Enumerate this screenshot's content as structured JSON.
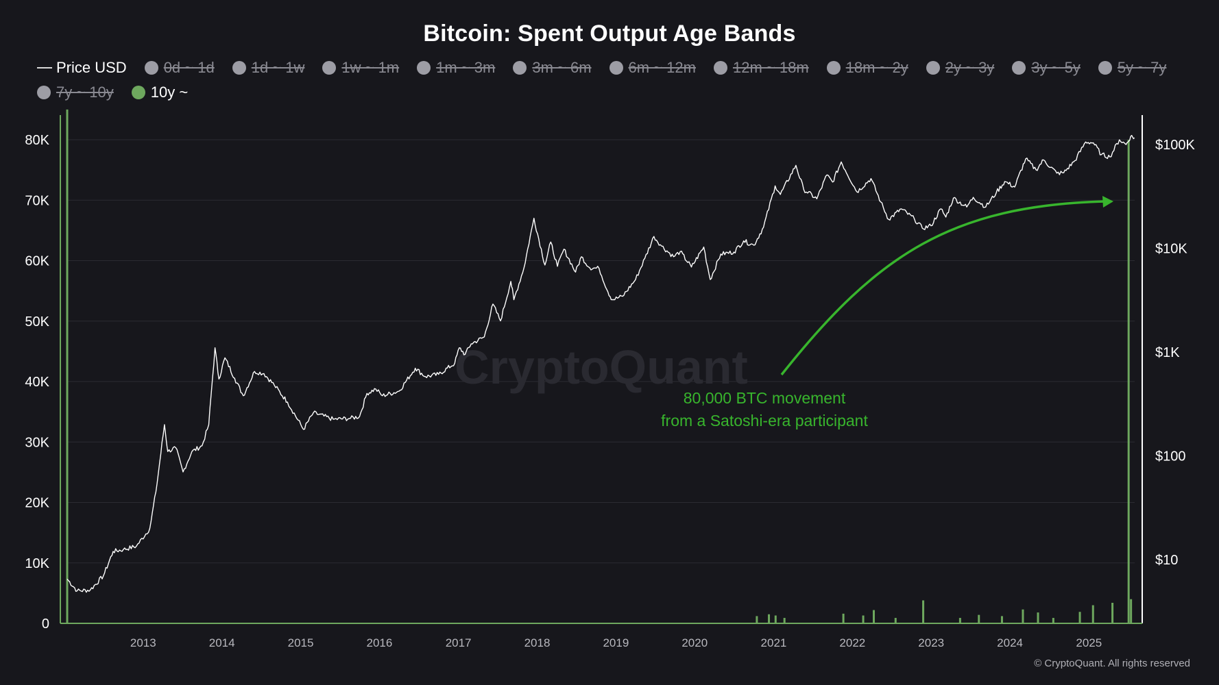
{
  "title": "Bitcoin: Spent Output Age Bands",
  "legend": [
    {
      "label": "Price USD",
      "kind": "line",
      "color": "#d9d9d9",
      "active": true
    },
    {
      "label": "0d ~ 1d",
      "kind": "dot",
      "color": "#9d9da5",
      "active": false
    },
    {
      "label": "1d ~ 1w",
      "kind": "dot",
      "color": "#9d9da5",
      "active": false
    },
    {
      "label": "1w ~ 1m",
      "kind": "dot",
      "color": "#9d9da5",
      "active": false
    },
    {
      "label": "1m ~ 3m",
      "kind": "dot",
      "color": "#9d9da5",
      "active": false
    },
    {
      "label": "3m ~ 6m",
      "kind": "dot",
      "color": "#9d9da5",
      "active": false
    },
    {
      "label": "6m ~ 12m",
      "kind": "dot",
      "color": "#9d9da5",
      "active": false
    },
    {
      "label": "12m ~ 18m",
      "kind": "dot",
      "color": "#9d9da5",
      "active": false
    },
    {
      "label": "18m ~ 2y",
      "kind": "dot",
      "color": "#9d9da5",
      "active": false
    },
    {
      "label": "2y ~ 3y",
      "kind": "dot",
      "color": "#9d9da5",
      "active": false
    },
    {
      "label": "3y ~ 5y",
      "kind": "dot",
      "color": "#9d9da5",
      "active": false
    },
    {
      "label": "5y ~ 7y",
      "kind": "dot",
      "color": "#9d9da5",
      "active": false
    },
    {
      "label": "7y ~ 10y",
      "kind": "dot",
      "color": "#9d9da5",
      "active": false
    },
    {
      "label": "10y ~",
      "kind": "dot",
      "color": "#6ea85e",
      "active": true
    }
  ],
  "watermark": "CryptoQuant",
  "copyright": "© CryptoQuant. All rights reserved",
  "colors": {
    "background": "#17171c",
    "price_line": "#ffffff",
    "band_10y": "#6ea85e",
    "annotation": "#38b52d",
    "grid": "#2b2b32"
  },
  "chart_data": {
    "type": "line",
    "title": "Bitcoin: Spent Output Age Bands",
    "grid": true,
    "legend_position": "top-left",
    "x_axis": {
      "type": "date",
      "range": [
        "2012-01-15",
        "2025-08-01"
      ],
      "ticks": [
        "2013",
        "2014",
        "2015",
        "2016",
        "2017",
        "2018",
        "2019",
        "2020",
        "2021",
        "2022",
        "2023",
        "2024",
        "2025"
      ]
    },
    "y_left": {
      "label": "",
      "range": [
        0,
        80000
      ],
      "ticks": [
        0,
        10000,
        20000,
        30000,
        40000,
        50000,
        60000,
        70000,
        80000
      ],
      "tick_labels": [
        "0",
        "10K",
        "20K",
        "30K",
        "40K",
        "50K",
        "60K",
        "70K",
        "80K"
      ]
    },
    "y_right": {
      "label": "",
      "scale": "log",
      "ticks": [
        10,
        100,
        1000,
        10000,
        100000
      ],
      "tick_labels": [
        "$10",
        "$100",
        "$1K",
        "$10K",
        "$100K"
      ]
    },
    "series": [
      {
        "name": "Price USD",
        "axis": "right",
        "color": "#ffffff",
        "points": [
          [
            "2012-01-15",
            6.5
          ],
          [
            "2012-03-01",
            5
          ],
          [
            "2012-05-01",
            5.1
          ],
          [
            "2012-07-01",
            7
          ],
          [
            "2012-08-15",
            12
          ],
          [
            "2012-10-01",
            12.5
          ],
          [
            "2012-12-01",
            13.5
          ],
          [
            "2013-02-01",
            20
          ],
          [
            "2013-03-01",
            45
          ],
          [
            "2013-04-10",
            200
          ],
          [
            "2013-04-25",
            110
          ],
          [
            "2013-06-01",
            120
          ],
          [
            "2013-07-05",
            70
          ],
          [
            "2013-08-15",
            110
          ],
          [
            "2013-10-01",
            125
          ],
          [
            "2013-11-01",
            200
          ],
          [
            "2013-11-30",
            1100
          ],
          [
            "2013-12-18",
            550
          ],
          [
            "2014-01-15",
            880
          ],
          [
            "2014-03-01",
            560
          ],
          [
            "2014-04-10",
            380
          ],
          [
            "2014-06-01",
            650
          ],
          [
            "2014-07-15",
            620
          ],
          [
            "2014-09-01",
            480
          ],
          [
            "2014-11-01",
            330
          ],
          [
            "2015-01-14",
            180
          ],
          [
            "2015-03-01",
            260
          ],
          [
            "2015-06-01",
            225
          ],
          [
            "2015-08-20",
            230
          ],
          [
            "2015-10-01",
            240
          ],
          [
            "2015-11-04",
            400
          ],
          [
            "2015-12-15",
            440
          ],
          [
            "2016-01-15",
            380
          ],
          [
            "2016-04-01",
            420
          ],
          [
            "2016-06-15",
            700
          ],
          [
            "2016-08-01",
            580
          ],
          [
            "2016-10-01",
            610
          ],
          [
            "2016-12-15",
            780
          ],
          [
            "2017-01-05",
            1100
          ],
          [
            "2017-02-01",
            950
          ],
          [
            "2017-03-01",
            1200
          ],
          [
            "2017-05-01",
            1400
          ],
          [
            "2017-06-10",
            2900
          ],
          [
            "2017-07-15",
            2000
          ],
          [
            "2017-09-01",
            4800
          ],
          [
            "2017-09-15",
            3200
          ],
          [
            "2017-11-01",
            6500
          ],
          [
            "2017-12-17",
            19500
          ],
          [
            "2018-02-06",
            6900
          ],
          [
            "2018-03-05",
            11500
          ],
          [
            "2018-04-05",
            6700
          ],
          [
            "2018-05-05",
            9800
          ],
          [
            "2018-06-28",
            5900
          ],
          [
            "2018-07-25",
            8300
          ],
          [
            "2018-09-01",
            6500
          ],
          [
            "2018-10-15",
            6400
          ],
          [
            "2018-11-25",
            3800
          ],
          [
            "2018-12-15",
            3200
          ],
          [
            "2019-02-01",
            3450
          ],
          [
            "2019-04-02",
            5000
          ],
          [
            "2019-05-15",
            8000
          ],
          [
            "2019-06-26",
            13000
          ],
          [
            "2019-08-01",
            10500
          ],
          [
            "2019-09-25",
            8300
          ],
          [
            "2019-10-26",
            9300
          ],
          [
            "2019-12-17",
            6600
          ],
          [
            "2020-02-12",
            10300
          ],
          [
            "2020-03-13",
            5000
          ],
          [
            "2020-05-01",
            8800
          ],
          [
            "2020-07-01",
            9200
          ],
          [
            "2020-08-15",
            11800
          ],
          [
            "2020-10-01",
            10700
          ],
          [
            "2020-11-15",
            16000
          ],
          [
            "2021-01-08",
            40000
          ],
          [
            "2021-02-01",
            33000
          ],
          [
            "2021-04-14",
            63000
          ],
          [
            "2021-05-20",
            37000
          ],
          [
            "2021-07-20",
            30000
          ],
          [
            "2021-09-05",
            51000
          ],
          [
            "2021-10-01",
            43500
          ],
          [
            "2021-11-10",
            68000
          ],
          [
            "2022-01-22",
            35000
          ],
          [
            "2022-03-28",
            47000
          ],
          [
            "2022-05-12",
            28000
          ],
          [
            "2022-06-18",
            19000
          ],
          [
            "2022-08-15",
            24000
          ],
          [
            "2022-10-15",
            19200
          ],
          [
            "2022-11-21",
            15600
          ],
          [
            "2022-12-31",
            16500
          ],
          [
            "2023-02-15",
            24000
          ],
          [
            "2023-03-10",
            20000
          ],
          [
            "2023-04-14",
            30500
          ],
          [
            "2023-06-15",
            25000
          ],
          [
            "2023-07-15",
            31000
          ],
          [
            "2023-09-11",
            25000
          ],
          [
            "2023-10-30",
            34500
          ],
          [
            "2023-12-08",
            44000
          ],
          [
            "2024-01-23",
            39000
          ],
          [
            "2024-03-14",
            73000
          ],
          [
            "2024-05-01",
            57000
          ],
          [
            "2024-06-05",
            71000
          ],
          [
            "2024-08-05",
            53000
          ],
          [
            "2024-09-06",
            53500
          ],
          [
            "2024-10-28",
            70000
          ],
          [
            "2024-12-17",
            106000
          ],
          [
            "2025-01-21",
            104000
          ],
          [
            "2025-02-28",
            80000
          ],
          [
            "2025-04-08",
            76000
          ],
          [
            "2025-05-22",
            111000
          ],
          [
            "2025-06-22",
            100000
          ],
          [
            "2025-07-14",
            120000
          ],
          [
            "2025-07-31",
            116000
          ]
        ]
      },
      {
        "name": "10y ~",
        "axis": "left",
        "color": "#6ea85e",
        "points": [
          [
            "2012-01-15",
            85000
          ],
          [
            "2020-10-15",
            1200
          ],
          [
            "2020-12-10",
            1500
          ],
          [
            "2021-01-10",
            1300
          ],
          [
            "2021-02-20",
            900
          ],
          [
            "2021-11-20",
            1600
          ],
          [
            "2022-02-20",
            1300
          ],
          [
            "2022-04-10",
            2200
          ],
          [
            "2022-07-20",
            900
          ],
          [
            "2022-11-25",
            3800
          ],
          [
            "2023-05-15",
            900
          ],
          [
            "2023-08-10",
            1400
          ],
          [
            "2023-11-25",
            1200
          ],
          [
            "2024-03-01",
            2300
          ],
          [
            "2024-05-10",
            1800
          ],
          [
            "2024-07-20",
            900
          ],
          [
            "2024-11-20",
            1900
          ],
          [
            "2025-01-20",
            3000
          ],
          [
            "2025-04-20",
            3400
          ],
          [
            "2025-07-04",
            80000
          ],
          [
            "2025-07-15",
            4000
          ]
        ]
      }
    ],
    "annotations": [
      {
        "text": [
          "80,000 BTC movement",
          "from a Satoshi-era participant"
        ],
        "date": "2025-07-04",
        "value": 80000
      }
    ]
  }
}
